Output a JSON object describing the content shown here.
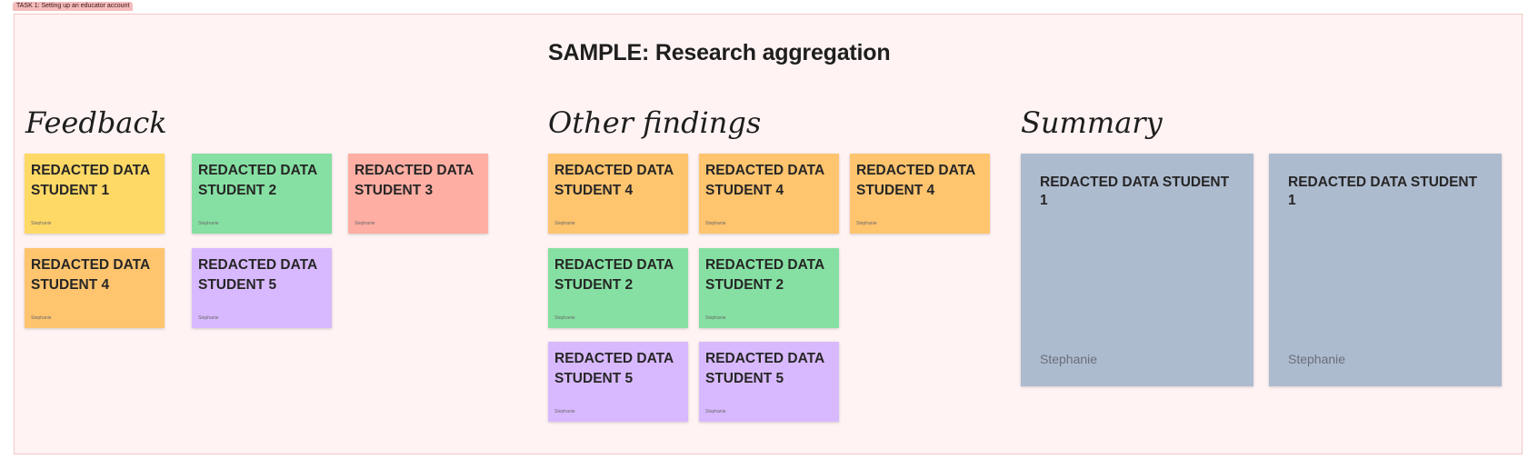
{
  "section": {
    "tag": "TASK 1: Setting up an educator account",
    "title": "SAMPLE: Research aggregation"
  },
  "columns": {
    "feedback": "Feedback",
    "other": "Other findings",
    "summary": "Summary"
  },
  "stickies": [
    {
      "text": "REDACTED DATA STUDENT 1",
      "author": "Stephanie",
      "color": "#ffd966"
    },
    {
      "text": "REDACTED DATA STUDENT 2",
      "author": "Stephanie",
      "color": "#86e0a3"
    },
    {
      "text": "REDACTED DATA STUDENT 3",
      "author": "Stephanie",
      "color": "#ffaea3"
    },
    {
      "text": "REDACTED DATA STUDENT 4",
      "author": "Stephanie",
      "color": "#ffc46e"
    },
    {
      "text": "REDACTED DATA STUDENT 5",
      "author": "Stephanie",
      "color": "#d8b9ff"
    },
    {
      "text": "REDACTED DATA STUDENT 4",
      "author": "Stephanie",
      "color": "#ffc46e"
    },
    {
      "text": "REDACTED DATA STUDENT 4",
      "author": "Stephanie",
      "color": "#ffc46e"
    },
    {
      "text": "REDACTED DATA STUDENT 4",
      "author": "Stephanie",
      "color": "#ffc46e"
    },
    {
      "text": "REDACTED DATA STUDENT 2",
      "author": "Stephanie",
      "color": "#86e0a3"
    },
    {
      "text": "REDACTED DATA STUDENT 2",
      "author": "Stephanie",
      "color": "#86e0a3"
    },
    {
      "text": "REDACTED DATA STUDENT 5",
      "author": "Stephanie",
      "color": "#d8b9ff"
    },
    {
      "text": "REDACTED DATA STUDENT 5",
      "author": "Stephanie",
      "color": "#d8b9ff"
    },
    {
      "text": "REDACTED DATA STUDENT 1",
      "author": "Stephanie",
      "color": "#adbbcf"
    },
    {
      "text": "REDACTED DATA STUDENT 1",
      "author": "Stephanie",
      "color": "#adbbcf"
    }
  ]
}
